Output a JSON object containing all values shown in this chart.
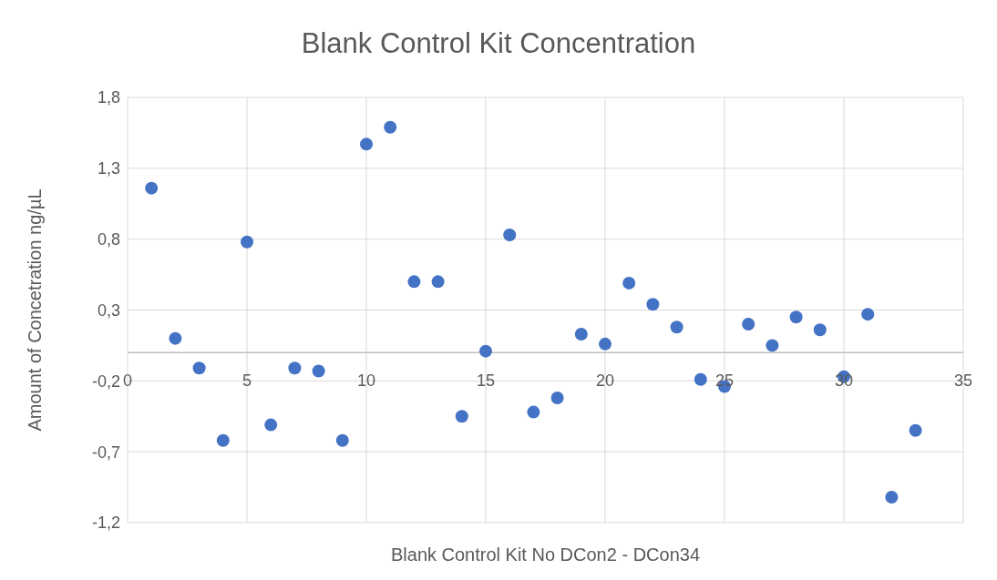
{
  "chart_data": {
    "type": "scatter",
    "title": "Blank Control Kit Concentration",
    "xlabel": "Blank Control Kit No DCon2 - DCon34",
    "ylabel": "Amount of Concetration ng/µL",
    "x": [
      1,
      2,
      3,
      4,
      5,
      6,
      7,
      8,
      9,
      10,
      11,
      12,
      13,
      14,
      15,
      16,
      17,
      18,
      19,
      20,
      21,
      22,
      23,
      24,
      25,
      26,
      27,
      28,
      29,
      30,
      31,
      32,
      33
    ],
    "series": [
      {
        "color": "#4472c4",
        "values": [
          1.16,
          0.1,
          -0.11,
          -0.62,
          0.78,
          -0.51,
          -0.11,
          -0.13,
          -0.62,
          1.47,
          1.59,
          0.5,
          0.5,
          -0.45,
          0.01,
          0.83,
          -0.42,
          -0.32,
          0.13,
          0.06,
          0.49,
          0.34,
          0.18,
          -0.19,
          -0.24,
          0.2,
          0.05,
          0.25,
          0.16,
          -0.17,
          0.27,
          -1.02,
          -0.55
        ]
      }
    ],
    "xlim": [
      0,
      35
    ],
    "xticks": [
      0,
      5,
      10,
      15,
      20,
      25,
      30,
      35
    ],
    "ylim": [
      -1.2,
      1.8
    ],
    "yticks": [
      {
        "value": -1.2,
        "label": "-1,2"
      },
      {
        "value": -0.7,
        "label": "-0,7"
      },
      {
        "value": -0.2,
        "label": "-0,2"
      },
      {
        "value": 0.3,
        "label": "0,3"
      },
      {
        "value": 0.8,
        "label": "0,8"
      },
      {
        "value": 1.3,
        "label": "1,3"
      },
      {
        "value": 1.8,
        "label": "1,8"
      }
    ],
    "grid": true,
    "marker": "circle"
  }
}
